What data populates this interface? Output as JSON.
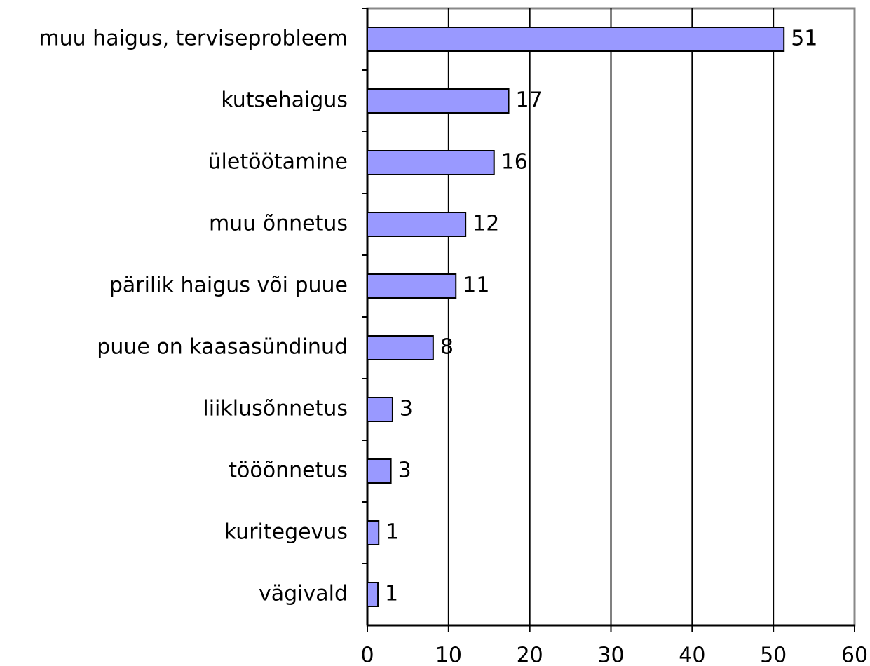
{
  "chart_data": {
    "type": "bar",
    "orientation": "horizontal",
    "categories": [
      "muu haigus, terviseprobleem",
      "kutsehaigus",
      "ületöötamine",
      "muu õnnetus",
      "pärilik haigus või puue",
      "puue on kaasasündinud",
      "liiklusõnnetus",
      "tööõnnetus",
      "kuritegevus",
      "vägivald"
    ],
    "values": [
      51.3,
      17.4,
      15.6,
      12.1,
      10.9,
      8.1,
      3.1,
      2.9,
      1.4,
      1.3
    ],
    "value_labels": [
      "51",
      "17",
      "16",
      "12",
      "11",
      "8",
      "3",
      "3",
      "1",
      "1"
    ],
    "color": "#9999ff",
    "xlim": [
      0,
      60
    ],
    "xticks": [
      0,
      10,
      20,
      30,
      40,
      50,
      60
    ],
    "grid": true
  }
}
